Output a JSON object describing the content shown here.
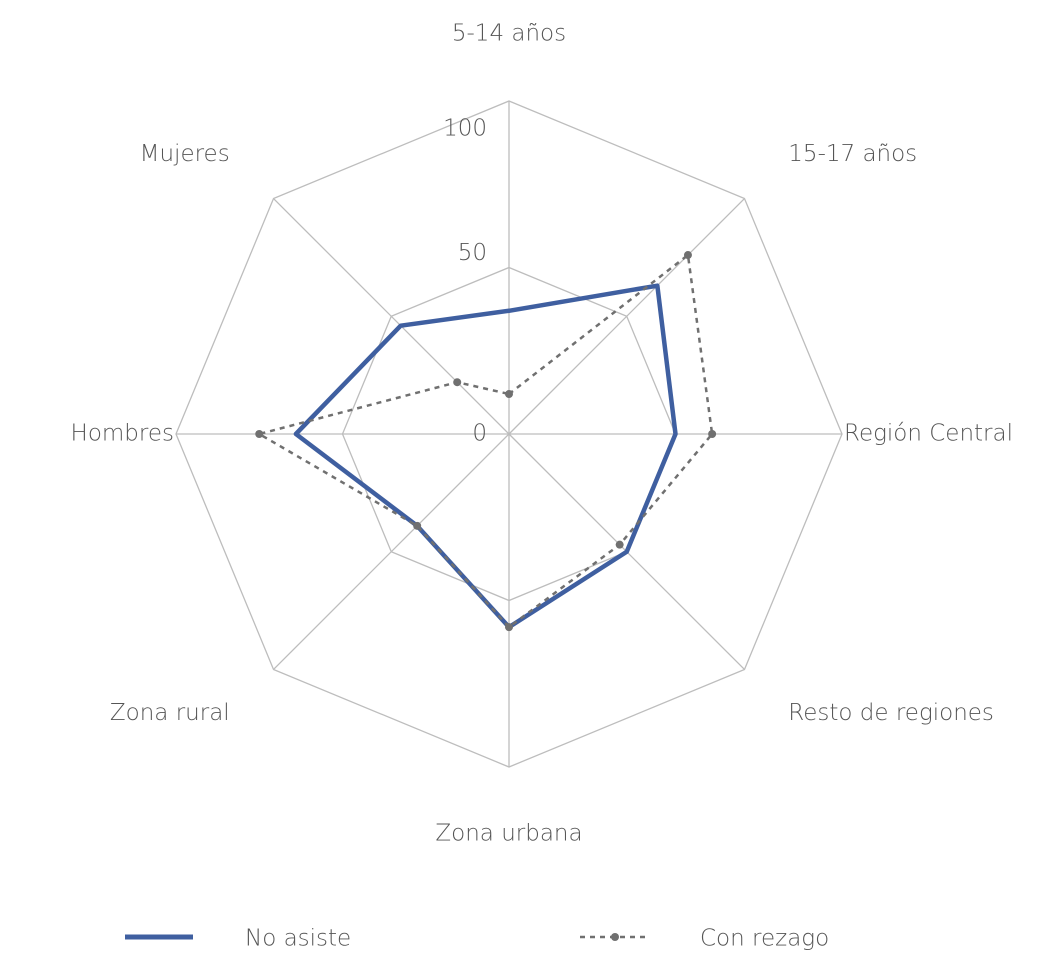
{
  "chart_data": {
    "type": "radar",
    "categories": [
      "5-14 años",
      "15-17 años",
      "Región Central",
      "Resto de regiones",
      "Zona urbana",
      "Zona rural",
      "Hombres",
      "Mujeres"
    ],
    "series": [
      {
        "name": "No asiste",
        "color": "#3f5fa0",
        "style": "solid",
        "values": [
          37,
          63,
          50,
          50,
          58,
          39,
          64,
          46
        ]
      },
      {
        "name": "Con rezago",
        "color": "#707070",
        "style": "dashed",
        "values": [
          12,
          76,
          61,
          47,
          58,
          39,
          75,
          22
        ]
      }
    ],
    "ylim": [
      0,
      100
    ],
    "yticks": [
      0,
      50,
      100
    ],
    "grid": true,
    "legend": "bottom"
  }
}
